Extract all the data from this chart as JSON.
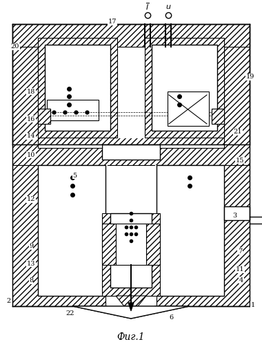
{
  "title": "Фиг.1",
  "background": "#ffffff",
  "fig_width": 3.8,
  "fig_height": 5.0,
  "dpi": 100
}
